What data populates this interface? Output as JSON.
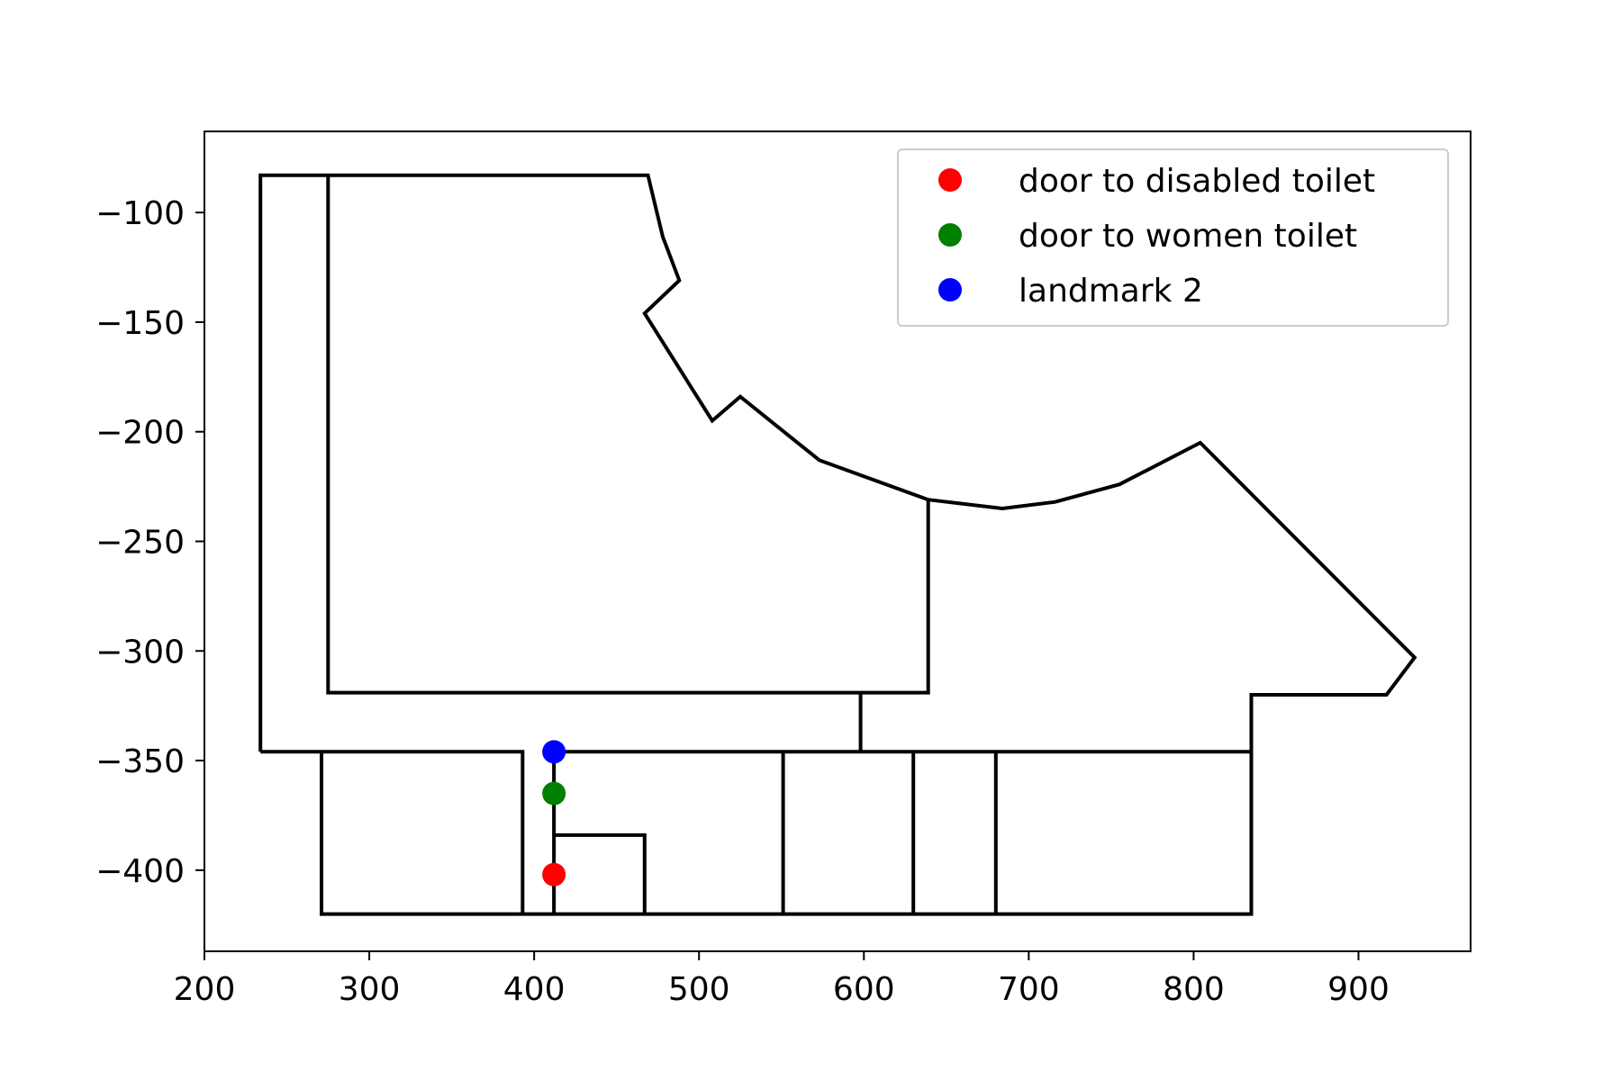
{
  "chart_data": {
    "type": "scatter",
    "title": "",
    "xlabel": "",
    "ylabel": "",
    "xlim": [
      200,
      968
    ],
    "ylim": [
      -437,
      -63
    ],
    "x_ticks": [
      {
        "value": 200,
        "label": "200"
      },
      {
        "value": 300,
        "label": "300"
      },
      {
        "value": 400,
        "label": "400"
      },
      {
        "value": 500,
        "label": "500"
      },
      {
        "value": 600,
        "label": "600"
      },
      {
        "value": 700,
        "label": "700"
      },
      {
        "value": 800,
        "label": "800"
      },
      {
        "value": 900,
        "label": "900"
      }
    ],
    "y_ticks": [
      {
        "value": -100,
        "label": "−100"
      },
      {
        "value": -150,
        "label": "−150"
      },
      {
        "value": -200,
        "label": "−200"
      },
      {
        "value": -250,
        "label": "−250"
      },
      {
        "value": -300,
        "label": "−300"
      },
      {
        "value": -350,
        "label": "−350"
      },
      {
        "value": -400,
        "label": "−400"
      }
    ],
    "grid": false,
    "legend_position": "top-right",
    "line_color": "#000000",
    "lines": [
      {
        "x": [
          234,
          234,
          469,
          478,
          488,
          467,
          508,
          525,
          573,
          639,
          684,
          716,
          755,
          804,
          934,
          917,
          835,
          835,
          412
        ],
        "y": [
          -346,
          -83,
          -83,
          -111,
          -131,
          -146,
          -195,
          -184,
          -213,
          -231,
          -235,
          -232,
          -224,
          -205,
          -303,
          -320,
          -320,
          -346,
          -346
        ]
      },
      {
        "x": [
          234,
          393,
          393
        ],
        "y": [
          -346,
          -346,
          -420
        ]
      },
      {
        "x": [
          275,
          275,
          639,
          639
        ],
        "y": [
          -83,
          -319,
          -319,
          -231
        ]
      },
      {
        "x": [
          598,
          598
        ],
        "y": [
          -319,
          -346
        ]
      },
      {
        "x": [
          271,
          271,
          835,
          835
        ],
        "y": [
          -346,
          -420,
          -420,
          -346
        ]
      },
      {
        "x": [
          412,
          412
        ],
        "y": [
          -346,
          -420
        ]
      },
      {
        "x": [
          412,
          467,
          467
        ],
        "y": [
          -384,
          -384,
          -420
        ]
      },
      {
        "x": [
          551,
          551
        ],
        "y": [
          -346,
          -420
        ]
      },
      {
        "x": [
          630,
          630
        ],
        "y": [
          -346,
          -420
        ]
      },
      {
        "x": [
          680,
          680
        ],
        "y": [
          -346,
          -420
        ]
      }
    ],
    "series": [
      {
        "name": "door to disabled toilet",
        "color": "#ff0000",
        "x": [
          412
        ],
        "y": [
          -402
        ]
      },
      {
        "name": "door to women toilet",
        "color": "#008000",
        "x": [
          412
        ],
        "y": [
          -365
        ]
      },
      {
        "name": "landmark 2",
        "color": "#0000ff",
        "x": [
          412
        ],
        "y": [
          -346
        ]
      }
    ]
  }
}
